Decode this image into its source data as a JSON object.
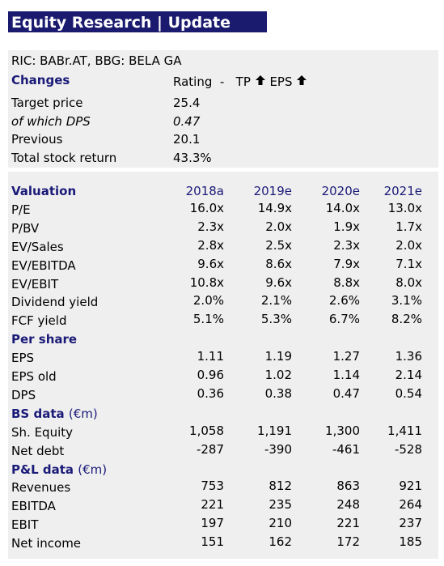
{
  "header": {
    "title": "Equity Research | Update"
  },
  "summary": {
    "ric": "RIC: BABr.AT, BBG: BELA GA",
    "changes": {
      "label": "Changes",
      "rating": "Rating",
      "dash": "-",
      "tp": "TP",
      "eps": "EPS"
    },
    "rows": [
      [
        "Target price",
        "25.4"
      ],
      [
        "of which DPS",
        "0.47"
      ],
      [
        "Previous",
        "20.1"
      ],
      [
        "Total stock return",
        "43.3%"
      ]
    ]
  },
  "table": {
    "columns": [
      "2018a",
      "2019e",
      "2020e",
      "2021e"
    ],
    "sections": [
      {
        "title": "Valuation",
        "rows": [
          [
            "P/E",
            "16.0x",
            "14.9x",
            "14.0x",
            "13.0x"
          ],
          [
            "P/BV",
            "2.3x",
            "2.0x",
            "1.9x",
            "1.7x"
          ],
          [
            "EV/Sales",
            "2.8x",
            "2.5x",
            "2.3x",
            "2.0x"
          ],
          [
            "EV/EBITDA",
            "9.6x",
            "8.6x",
            "7.9x",
            "7.1x"
          ],
          [
            "EV/EBIT",
            "10.8x",
            "9.6x",
            "8.8x",
            "8.0x"
          ],
          [
            "Dividend yield",
            "2.0%",
            "2.1%",
            "2.6%",
            "3.1%"
          ],
          [
            "FCF yield",
            "5.1%",
            "5.3%",
            "6.7%",
            "8.2%"
          ]
        ]
      },
      {
        "title": "Per share",
        "rows": [
          [
            "EPS",
            "1.11",
            "1.19",
            "1.27",
            "1.36"
          ],
          [
            "EPS old",
            "0.96",
            "1.02",
            "1.14",
            "2.14"
          ],
          [
            "DPS",
            "0.36",
            "0.38",
            "0.47",
            "0.54"
          ]
        ]
      },
      {
        "title": "BS data",
        "unit": "(€m)",
        "rows": [
          [
            "Sh. Equity",
            "1,058",
            "1,191",
            "1,300",
            "1,411"
          ],
          [
            "Net debt",
            "-287",
            "-390",
            "-461",
            "-528"
          ]
        ]
      },
      {
        "title": "P&L data",
        "unit": "(€m)",
        "rows": [
          [
            "Revenues",
            "753",
            "812",
            "863",
            "921"
          ],
          [
            "EBITDA",
            "221",
            "235",
            "248",
            "264"
          ],
          [
            "EBIT",
            "197",
            "210",
            "221",
            "237"
          ],
          [
            "Net income",
            "151",
            "162",
            "172",
            "185"
          ]
        ]
      }
    ]
  }
}
